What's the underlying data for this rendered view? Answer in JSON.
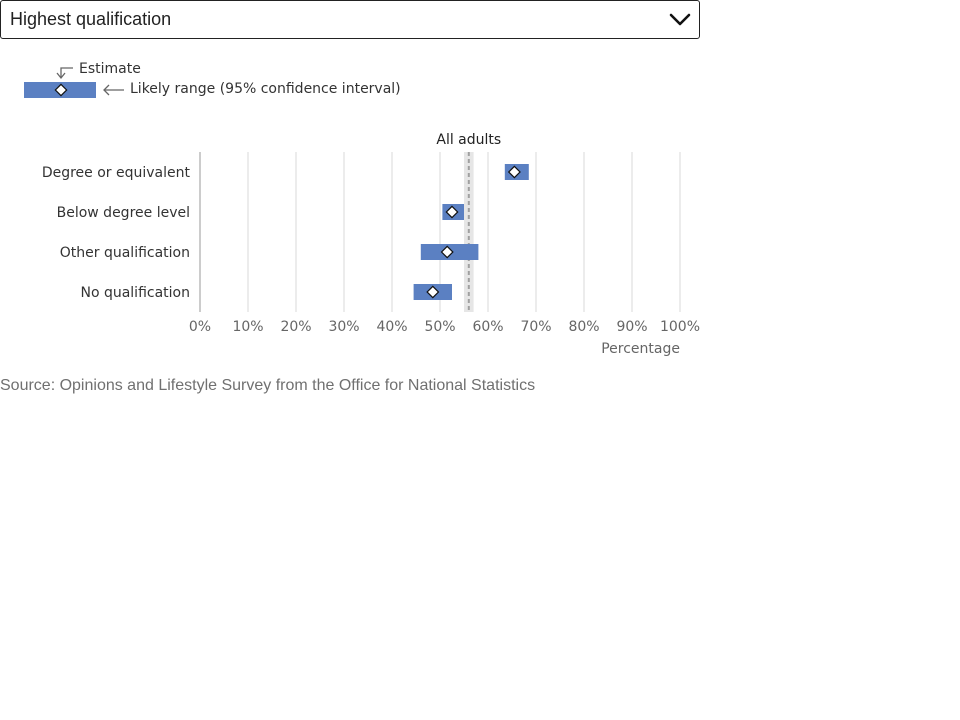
{
  "dropdown": {
    "selected": "Highest qualification",
    "icon": "chevron-down-icon"
  },
  "legend": {
    "estimate_label": "Estimate",
    "range_label": "Likely range (95% confidence interval)"
  },
  "chart_data": {
    "type": "dot-range",
    "reference_label": "All adults",
    "reference_value": 56,
    "reference_range": [
      55,
      57
    ],
    "categories": [
      "Degree or equivalent",
      "Below degree level",
      "Other qualification",
      "No qualification"
    ],
    "series": [
      {
        "estimate": [
          65.5,
          52.5,
          51.5,
          48.5
        ],
        "lower": [
          63.5,
          50.5,
          46.0,
          44.5
        ],
        "upper": [
          68.5,
          55.0,
          58.0,
          52.5
        ]
      }
    ],
    "xticks": [
      "0%",
      "10%",
      "20%",
      "30%",
      "40%",
      "50%",
      "60%",
      "70%",
      "80%",
      "90%",
      "100%"
    ],
    "xlim": [
      0,
      100
    ],
    "xlabel": "Percentage",
    "grid": true,
    "colors": {
      "range": "#5b80c2",
      "reference_band": "#e6e6e6",
      "reference_line": "#a0a0a0",
      "grid": "#d9d9d9"
    }
  },
  "source": "Source: Opinions and Lifestyle Survey from the Office for National Statistics"
}
